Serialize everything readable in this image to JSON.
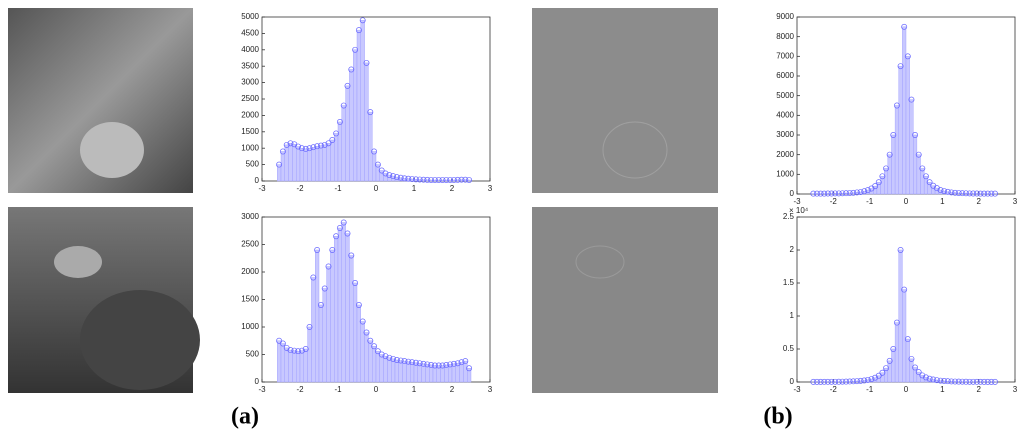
{
  "chart_data": [
    {
      "type": "histogram",
      "color": "#6666ff",
      "bins": [
        -2.6,
        -2.5,
        -2.4,
        -2.3,
        -2.2,
        -2.1,
        -2,
        -1.9,
        -1.8,
        -1.7,
        -1.6,
        -1.5,
        -1.4,
        -1.3,
        -1.2,
        -1.1,
        -1,
        -0.9,
        -0.8,
        -0.7,
        -0.6,
        -0.5,
        -0.4,
        -0.3,
        -0.2,
        -0.1,
        0,
        0.1,
        0.2,
        0.3,
        0.4,
        0.5,
        0.6,
        0.7,
        0.8,
        0.9,
        1,
        1.1,
        1.2,
        1.3,
        1.4,
        1.5,
        1.6,
        1.7,
        1.8,
        1.9,
        2,
        2.1,
        2.2,
        2.3,
        2.4,
        2.5
      ],
      "values": [
        500,
        900,
        1100,
        1150,
        1120,
        1050,
        1000,
        980,
        1000,
        1030,
        1060,
        1080,
        1100,
        1150,
        1250,
        1450,
        1800,
        2300,
        2900,
        3400,
        4000,
        4600,
        4900,
        3600,
        2100,
        900,
        500,
        320,
        230,
        180,
        150,
        120,
        100,
        80,
        70,
        60,
        50,
        45,
        40,
        35,
        30,
        30,
        30,
        30,
        30,
        30,
        30,
        35,
        40,
        40,
        30
      ],
      "xlim": [
        -3,
        3
      ],
      "xticks": [
        -3,
        -2,
        -1,
        0,
        1,
        2,
        3
      ],
      "ylim": [
        0,
        5000
      ],
      "yticks": [
        0,
        500,
        1000,
        1500,
        2000,
        2500,
        3000,
        3500,
        4000,
        4500,
        5000
      ]
    },
    {
      "type": "histogram",
      "color": "#6666ff",
      "bins": [
        -2.6,
        -2.5,
        -2.4,
        -2.3,
        -2.2,
        -2.1,
        -2,
        -1.9,
        -1.8,
        -1.7,
        -1.6,
        -1.5,
        -1.4,
        -1.3,
        -1.2,
        -1.1,
        -1,
        -0.9,
        -0.8,
        -0.7,
        -0.6,
        -0.5,
        -0.4,
        -0.3,
        -0.2,
        -0.1,
        0,
        0.1,
        0.2,
        0.3,
        0.4,
        0.5,
        0.6,
        0.7,
        0.8,
        0.9,
        1,
        1.1,
        1.2,
        1.3,
        1.4,
        1.5,
        1.6,
        1.7,
        1.8,
        1.9,
        2,
        2.1,
        2.2,
        2.3,
        2.4,
        2.5
      ],
      "values": [
        750,
        700,
        620,
        580,
        570,
        560,
        570,
        600,
        1000,
        1900,
        2400,
        1400,
        1700,
        2100,
        2400,
        2650,
        2800,
        2900,
        2700,
        2300,
        1800,
        1400,
        1100,
        900,
        750,
        650,
        560,
        500,
        470,
        440,
        420,
        400,
        390,
        380,
        370,
        360,
        350,
        340,
        330,
        320,
        310,
        300,
        300,
        300,
        310,
        320,
        330,
        340,
        360,
        380,
        250
      ],
      "xlim": [
        -3,
        3
      ],
      "xticks": [
        -3,
        -2,
        -1,
        0,
        1,
        2,
        3
      ],
      "ylim": [
        0,
        3000
      ],
      "yticks": [
        0,
        500,
        1000,
        1500,
        2000,
        2500,
        3000
      ]
    },
    {
      "type": "histogram",
      "color": "#6666ff",
      "bins": [
        -2.6,
        -2.5,
        -2.4,
        -2.3,
        -2.2,
        -2.1,
        -2,
        -1.9,
        -1.8,
        -1.7,
        -1.6,
        -1.5,
        -1.4,
        -1.3,
        -1.2,
        -1.1,
        -1,
        -0.9,
        -0.8,
        -0.7,
        -0.6,
        -0.5,
        -0.4,
        -0.3,
        -0.2,
        -0.1,
        0,
        0.1,
        0.2,
        0.3,
        0.4,
        0.5,
        0.6,
        0.7,
        0.8,
        0.9,
        1,
        1.1,
        1.2,
        1.3,
        1.4,
        1.5,
        1.6,
        1.7,
        1.8,
        1.9,
        2,
        2.1,
        2.2,
        2.3,
        2.4,
        2.5
      ],
      "values": [
        20,
        20,
        20,
        20,
        25,
        25,
        30,
        30,
        35,
        40,
        50,
        60,
        80,
        100,
        140,
        200,
        280,
        400,
        600,
        900,
        1300,
        2000,
        3000,
        4500,
        6500,
        8500,
        7000,
        4800,
        3000,
        2000,
        1300,
        900,
        600,
        420,
        300,
        200,
        150,
        110,
        80,
        60,
        50,
        40,
        35,
        30,
        25,
        25,
        20,
        20,
        20,
        20,
        20
      ],
      "xlim": [
        -3,
        3
      ],
      "xticks": [
        -3,
        -2,
        -1,
        0,
        1,
        2,
        3
      ],
      "ylim": [
        0,
        9000
      ],
      "yticks": [
        0,
        1000,
        2000,
        3000,
        4000,
        5000,
        6000,
        7000,
        8000,
        9000
      ]
    },
    {
      "type": "histogram",
      "color": "#6666ff",
      "y_multiplier": "× 10⁴",
      "bins": [
        -2.6,
        -2.5,
        -2.4,
        -2.3,
        -2.2,
        -2.1,
        -2,
        -1.9,
        -1.8,
        -1.7,
        -1.6,
        -1.5,
        -1.4,
        -1.3,
        -1.2,
        -1.1,
        -1,
        -0.9,
        -0.8,
        -0.7,
        -0.6,
        -0.5,
        -0.4,
        -0.3,
        -0.2,
        -0.1,
        0,
        0.1,
        0.2,
        0.3,
        0.4,
        0.5,
        0.6,
        0.7,
        0.8,
        0.9,
        1,
        1.1,
        1.2,
        1.3,
        1.4,
        1.5,
        1.6,
        1.7,
        1.8,
        1.9,
        2,
        2.1,
        2.2,
        2.3,
        2.4,
        2.5
      ],
      "values": [
        20,
        20,
        20,
        25,
        25,
        30,
        35,
        40,
        50,
        60,
        80,
        100,
        130,
        170,
        230,
        320,
        450,
        650,
        950,
        1400,
        2100,
        3200,
        5000,
        9000,
        20000,
        14000,
        6500,
        3500,
        2200,
        1500,
        1000,
        700,
        500,
        380,
        280,
        200,
        150,
        120,
        90,
        70,
        60,
        50,
        40,
        35,
        30,
        25,
        25,
        20,
        20,
        20,
        20
      ],
      "xlim": [
        -3,
        3
      ],
      "xticks": [
        -3,
        -2,
        -1,
        0,
        1,
        2,
        3
      ],
      "ylim": [
        0,
        25000
      ],
      "yticks": [
        0,
        {
          "value": 5000,
          "label": "0.5"
        },
        {
          "value": 10000,
          "label": "1"
        },
        {
          "value": 15000,
          "label": "1.5"
        },
        {
          "value": 20000,
          "label": "2"
        },
        {
          "value": 25000,
          "label": "2.5"
        }
      ]
    }
  ],
  "panel_labels": [
    "(a)",
    "(b)"
  ]
}
